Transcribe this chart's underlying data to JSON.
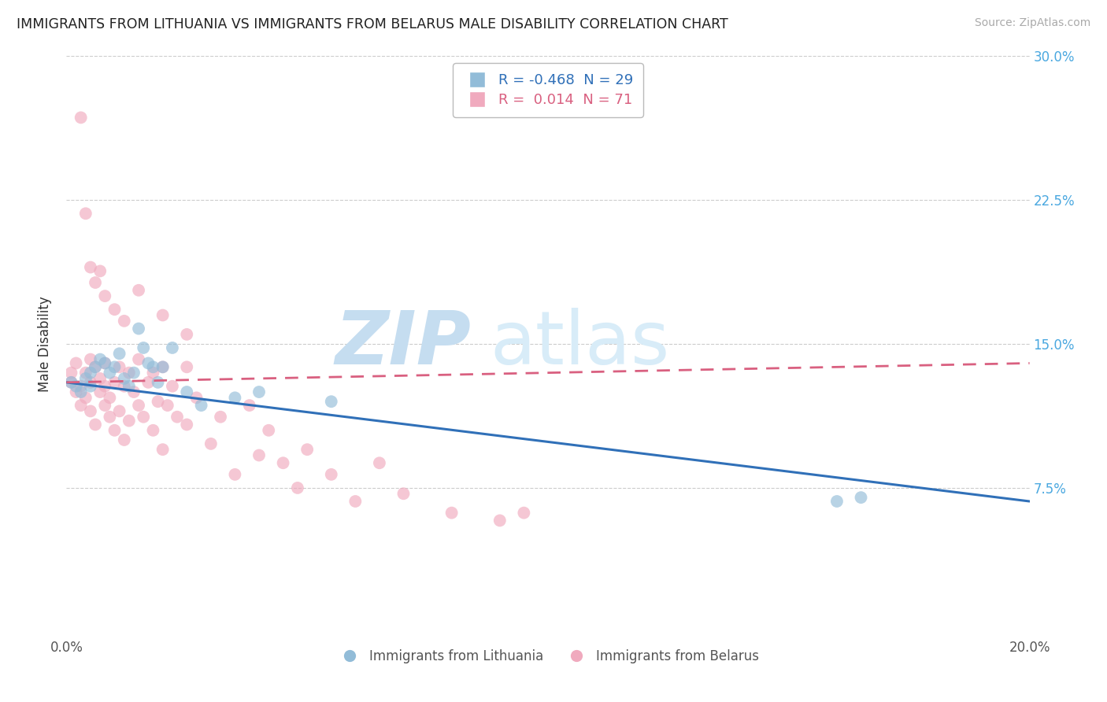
{
  "title": "IMMIGRANTS FROM LITHUANIA VS IMMIGRANTS FROM BELARUS MALE DISABILITY CORRELATION CHART",
  "source": "Source: ZipAtlas.com",
  "ylabel": "Male Disability",
  "xlim": [
    0.0,
    0.2
  ],
  "ylim": [
    0.0,
    0.3
  ],
  "yticks": [
    0.0,
    0.075,
    0.15,
    0.225,
    0.3
  ],
  "ytick_labels": [
    "",
    "7.5%",
    "15.0%",
    "22.5%",
    "30.0%"
  ],
  "xtick_labels": [
    "0.0%",
    "20.0%"
  ],
  "legend_R_blue": "-0.468",
  "legend_N_blue": "29",
  "legend_R_pink": "0.014",
  "legend_N_pink": "71",
  "blue_color": "#92bcd8",
  "pink_color": "#f0aabe",
  "trend_blue_color": "#3070b8",
  "trend_pink_color": "#d96080",
  "watermark_zip": "ZIP",
  "watermark_atlas": "atlas",
  "blue_scatter_x": [
    0.001,
    0.002,
    0.003,
    0.004,
    0.005,
    0.005,
    0.006,
    0.007,
    0.008,
    0.009,
    0.01,
    0.011,
    0.012,
    0.013,
    0.014,
    0.015,
    0.016,
    0.017,
    0.018,
    0.019,
    0.02,
    0.022,
    0.025,
    0.028,
    0.035,
    0.04,
    0.055,
    0.16,
    0.165
  ],
  "blue_scatter_y": [
    0.13,
    0.128,
    0.125,
    0.132,
    0.128,
    0.135,
    0.138,
    0.142,
    0.14,
    0.135,
    0.138,
    0.145,
    0.132,
    0.128,
    0.135,
    0.158,
    0.148,
    0.14,
    0.138,
    0.13,
    0.138,
    0.148,
    0.125,
    0.118,
    0.122,
    0.125,
    0.12,
    0.068,
    0.07
  ],
  "pink_scatter_x": [
    0.001,
    0.001,
    0.002,
    0.002,
    0.003,
    0.003,
    0.004,
    0.004,
    0.005,
    0.005,
    0.005,
    0.006,
    0.006,
    0.007,
    0.007,
    0.008,
    0.008,
    0.008,
    0.009,
    0.009,
    0.01,
    0.01,
    0.011,
    0.011,
    0.012,
    0.012,
    0.013,
    0.013,
    0.014,
    0.015,
    0.015,
    0.016,
    0.017,
    0.018,
    0.018,
    0.019,
    0.02,
    0.02,
    0.021,
    0.022,
    0.023,
    0.025,
    0.025,
    0.027,
    0.03,
    0.032,
    0.035,
    0.038,
    0.04,
    0.042,
    0.045,
    0.048,
    0.05,
    0.055,
    0.06,
    0.065,
    0.07,
    0.08,
    0.09,
    0.095,
    0.003,
    0.004,
    0.005,
    0.006,
    0.007,
    0.008,
    0.01,
    0.012,
    0.015,
    0.02,
    0.025
  ],
  "pink_scatter_y": [
    0.13,
    0.135,
    0.125,
    0.14,
    0.118,
    0.128,
    0.122,
    0.135,
    0.115,
    0.13,
    0.142,
    0.108,
    0.138,
    0.125,
    0.132,
    0.118,
    0.128,
    0.14,
    0.122,
    0.112,
    0.13,
    0.105,
    0.138,
    0.115,
    0.128,
    0.1,
    0.135,
    0.11,
    0.125,
    0.118,
    0.142,
    0.112,
    0.13,
    0.105,
    0.135,
    0.12,
    0.095,
    0.138,
    0.118,
    0.128,
    0.112,
    0.108,
    0.138,
    0.122,
    0.098,
    0.112,
    0.082,
    0.118,
    0.092,
    0.105,
    0.088,
    0.075,
    0.095,
    0.082,
    0.068,
    0.088,
    0.072,
    0.062,
    0.058,
    0.062,
    0.268,
    0.218,
    0.19,
    0.182,
    0.188,
    0.175,
    0.168,
    0.162,
    0.178,
    0.165,
    0.155
  ]
}
